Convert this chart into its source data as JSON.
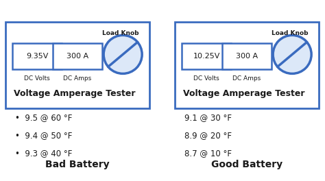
{
  "bg_color": "#ffffff",
  "border_color": "#3a6bbf",
  "title_bad": "Bad Battery",
  "title_good": "Good Battery",
  "bad_volts": "9.35V",
  "bad_amps": "300 A",
  "good_volts": "10.25V",
  "good_amps": "300 A",
  "dc_volts_label": "DC Volts",
  "dc_amps_label": "DC Amps",
  "load_knob_label": "Load Knob",
  "tester_label": "Voltage Amperage Tester",
  "bad_bullets": [
    "•  9.5 @ 60 °F",
    "•  9.4 @ 50 °F",
    "•  9.3 @ 40 °F"
  ],
  "good_bullets": [
    "9.1 @ 30 °F",
    "8.9 @ 20 °F",
    "8.7 @ 10 °F"
  ],
  "text_color": "#1a1a1a",
  "box_color": "#3a6bbf",
  "no_fill_color": "#dce8f8"
}
